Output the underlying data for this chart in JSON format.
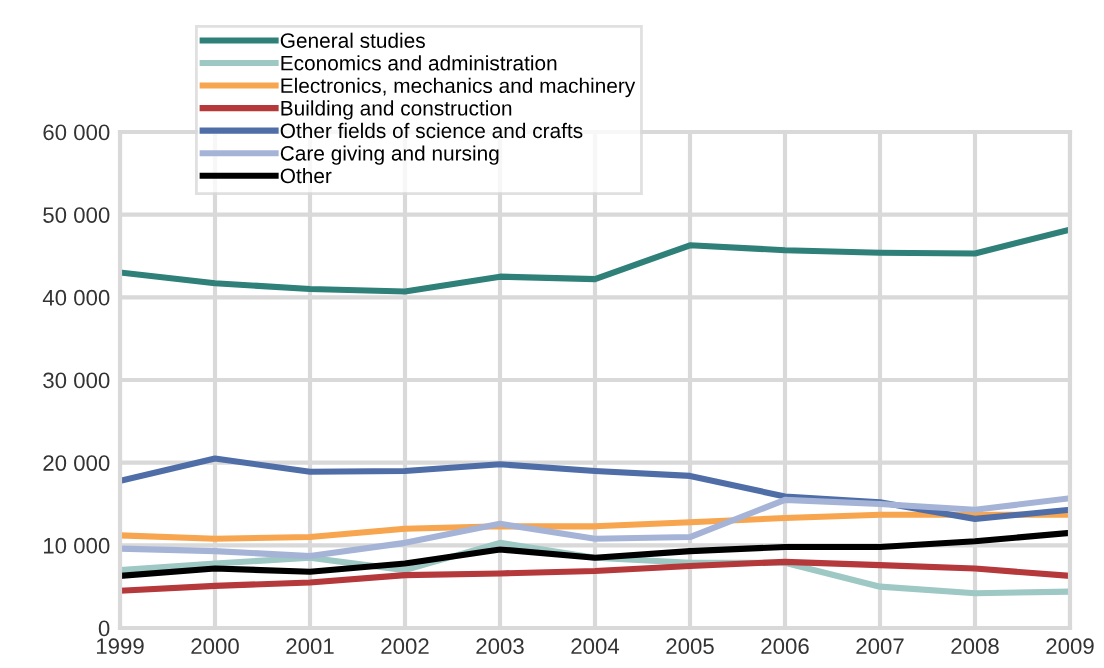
{
  "chart_data": {
    "type": "line",
    "x": [
      1999,
      2000,
      2001,
      2002,
      2003,
      2004,
      2005,
      2006,
      2007,
      2008,
      2009
    ],
    "xlim": [
      1999,
      2009
    ],
    "xticks": [
      1999,
      2000,
      2001,
      2002,
      2003,
      2004,
      2005,
      2006,
      2007,
      2008,
      2009
    ],
    "ylim": [
      0,
      60000
    ],
    "yticks": [
      {
        "value": 0,
        "label": "0"
      },
      {
        "value": 10000,
        "label": "10 000"
      },
      {
        "value": 20000,
        "label": "20 000"
      },
      {
        "value": 30000,
        "label": "30 000"
      },
      {
        "value": 40000,
        "label": "40 000"
      },
      {
        "value": 50000,
        "label": "50 000"
      },
      {
        "value": 60000,
        "label": "60 000"
      }
    ],
    "grid": true,
    "legend": "top left",
    "marker": "none",
    "line_style": "solid",
    "series": [
      {
        "name": "General studies",
        "color": "#2e8079",
        "values": [
          43000,
          41700,
          41000,
          40700,
          42500,
          42200,
          46300,
          45700,
          45400,
          45300,
          48200
        ]
      },
      {
        "name": "Economics and administration",
        "color": "#9dc8c4",
        "values": [
          7000,
          7800,
          8500,
          7000,
          10300,
          8500,
          7900,
          7900,
          5000,
          4200,
          4400
        ]
      },
      {
        "name": "Electronics, mechanics and machinery",
        "color": "#f7a54f",
        "values": [
          11200,
          10800,
          11000,
          12000,
          12300,
          12300,
          12800,
          13300,
          13700,
          13700,
          13700
        ]
      },
      {
        "name": "Building and construction",
        "color": "#b5383b",
        "values": [
          4500,
          5100,
          5500,
          6400,
          6600,
          6900,
          7500,
          8000,
          7600,
          7200,
          6300
        ]
      },
      {
        "name": "Other fields of science and crafts",
        "color": "#4f6ea8",
        "values": [
          17800,
          20500,
          18900,
          19000,
          19800,
          19000,
          18400,
          15900,
          15200,
          13200,
          14300
        ]
      },
      {
        "name": "Care giving and nursing",
        "color": "#a5b4d6",
        "values": [
          9600,
          9300,
          8700,
          10300,
          12600,
          10800,
          11000,
          15500,
          15000,
          14300,
          15700
        ]
      },
      {
        "name": "Other",
        "color": "#000000",
        "values": [
          6300,
          7200,
          6800,
          7800,
          9500,
          8500,
          9300,
          9800,
          9800,
          10500,
          11500
        ]
      }
    ]
  }
}
